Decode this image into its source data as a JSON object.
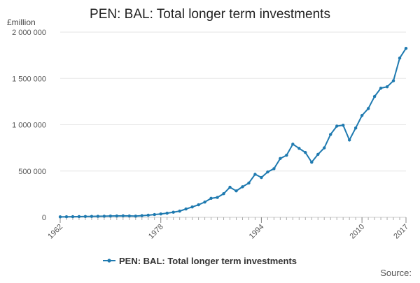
{
  "chart_data": {
    "type": "line",
    "title": "PEN: BAL: Total longer term investments",
    "unit_label": "£million",
    "source_label": "Source:",
    "legend_position": "bottom",
    "grid": true,
    "ylim": [
      0,
      2000000
    ],
    "y_ticks": [
      0,
      500000,
      1000000,
      1500000,
      2000000
    ],
    "y_tick_labels": [
      "0",
      "500 000",
      "1 000 000",
      "1 500 000",
      "2 000 000"
    ],
    "x_ticks": [
      1962,
      1978,
      1994,
      2010,
      2017
    ],
    "x_tick_labels": [
      "1962",
      "1978",
      "1994",
      "2010",
      "2017"
    ],
    "xlim": [
      1962,
      2017
    ],
    "series": [
      {
        "name": "PEN: BAL: Total longer term investments",
        "color": "#1f7ab0",
        "x": [
          1962,
          1963,
          1964,
          1965,
          1966,
          1967,
          1968,
          1969,
          1970,
          1971,
          1972,
          1973,
          1974,
          1975,
          1976,
          1977,
          1978,
          1979,
          1980,
          1981,
          1982,
          1983,
          1984,
          1985,
          1986,
          1987,
          1988,
          1989,
          1990,
          1991,
          1992,
          1993,
          1994,
          1995,
          1996,
          1997,
          1998,
          1999,
          2000,
          2001,
          2002,
          2003,
          2004,
          2005,
          2006,
          2007,
          2008,
          2009,
          2010,
          2011,
          2012,
          2013,
          2014,
          2015,
          2016,
          2017
        ],
        "values": [
          5000,
          6000,
          7000,
          8000,
          9000,
          10000,
          11000,
          12000,
          14000,
          15000,
          16000,
          15000,
          13000,
          18000,
          23000,
          30000,
          36000,
          45000,
          55000,
          67000,
          90000,
          112000,
          135000,
          165000,
          205000,
          215000,
          255000,
          325000,
          285000,
          330000,
          370000,
          465000,
          430000,
          490000,
          525000,
          635000,
          670000,
          790000,
          745000,
          700000,
          595000,
          680000,
          750000,
          895000,
          985000,
          995000,
          835000,
          965000,
          1100000,
          1175000,
          1305000,
          1395000,
          1410000,
          1475000,
          1720000,
          1825000
        ]
      }
    ]
  }
}
